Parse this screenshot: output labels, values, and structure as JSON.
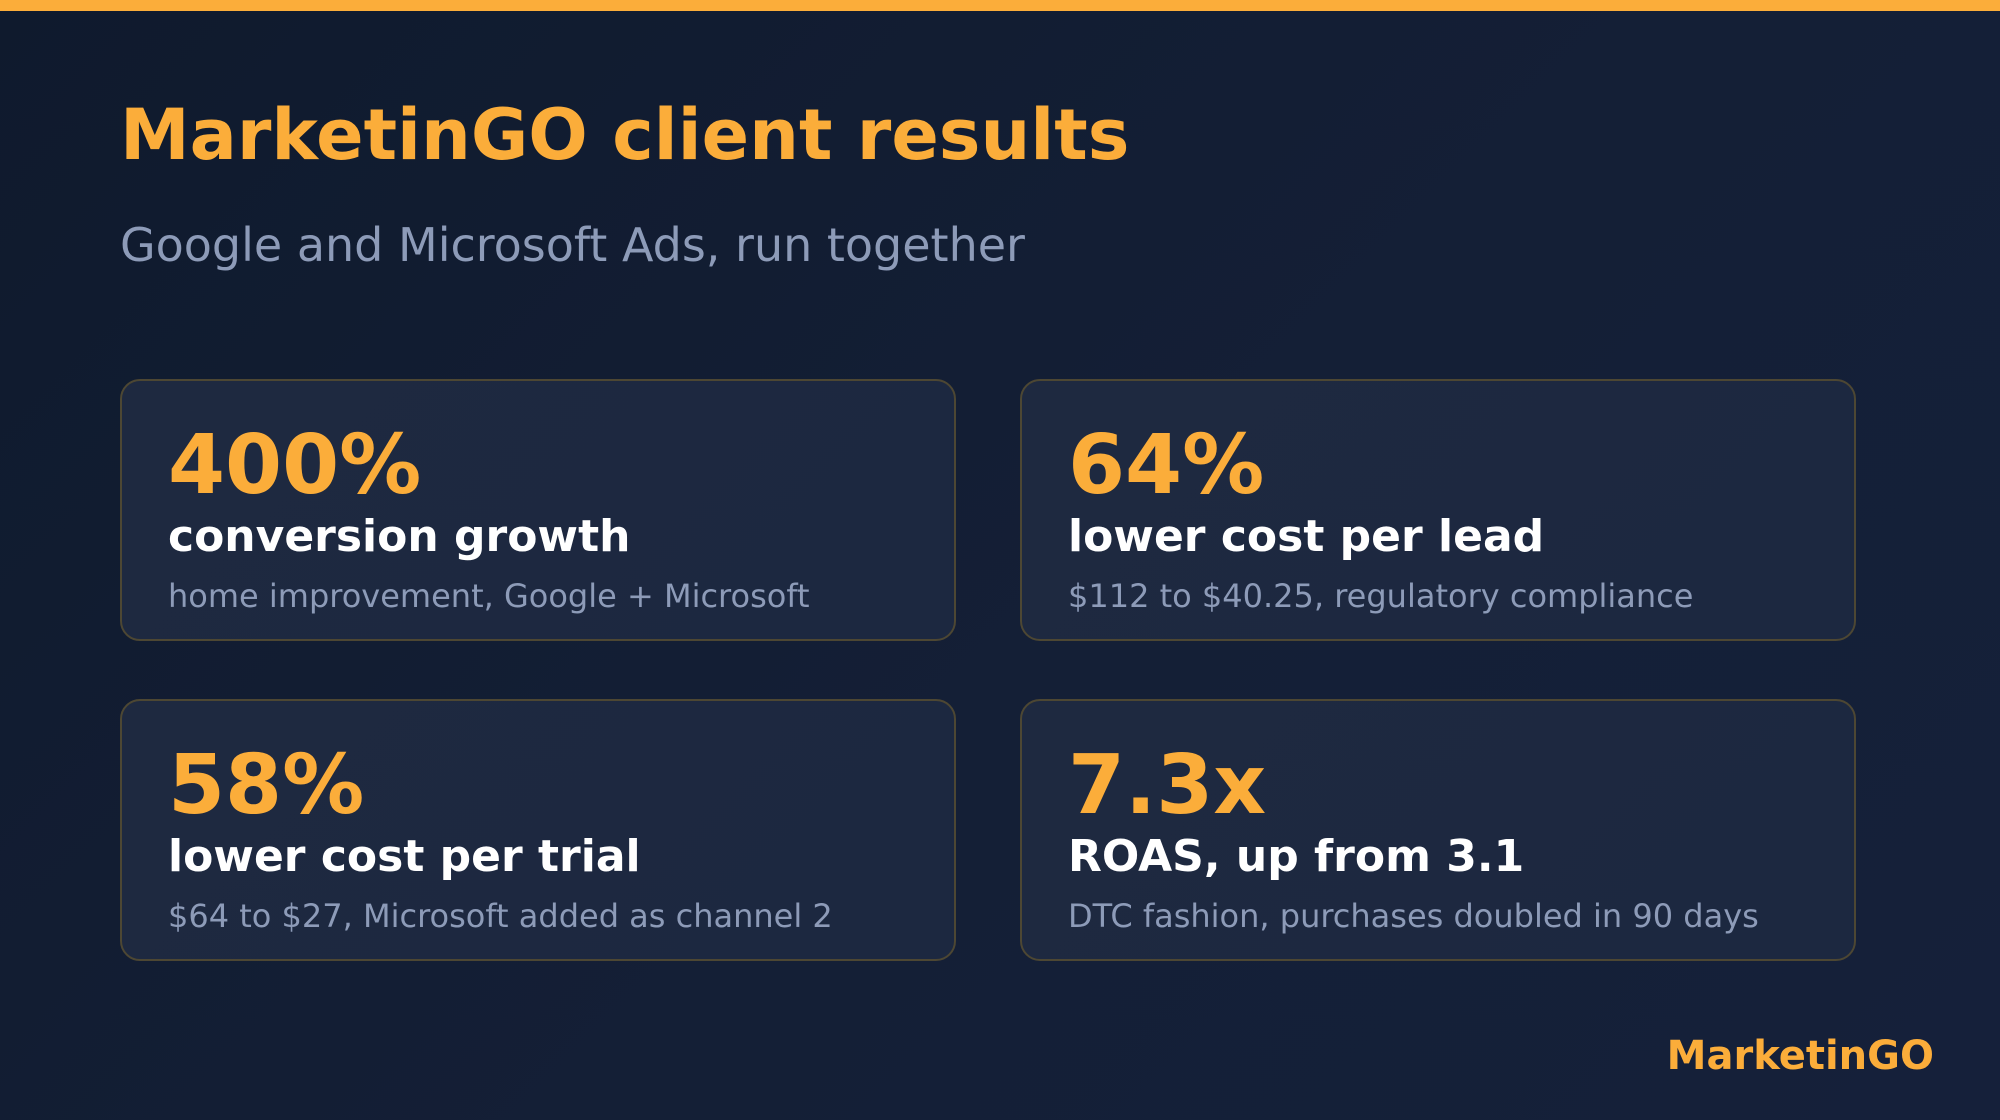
{
  "header": {
    "title": "MarketinGO client results",
    "subtitle": "Google and Microsoft Ads, run together"
  },
  "results": [
    {
      "value": "400%",
      "label": "conversion growth",
      "detail": "home improvement, Google + Microsoft"
    },
    {
      "value": "64%",
      "label": "lower cost per lead",
      "detail": "$112 to $40.25, regulatory compliance"
    },
    {
      "value": "58%",
      "label": "lower cost per trial",
      "detail": "$64 to $27, Microsoft added as channel 2"
    },
    {
      "value": "7.3x",
      "label": "ROAS, up from 3.1",
      "detail": "DTC fashion, purchases doubled in 90 days"
    }
  ],
  "footer": {
    "brand": "MarketinGO"
  },
  "colors": {
    "accent": "#fbad3a",
    "background": "#111c31",
    "card_background": "#1e2940",
    "card_border": "#4d4733",
    "heading_text": "#ffffff",
    "muted_text": "#8d9bb8"
  }
}
